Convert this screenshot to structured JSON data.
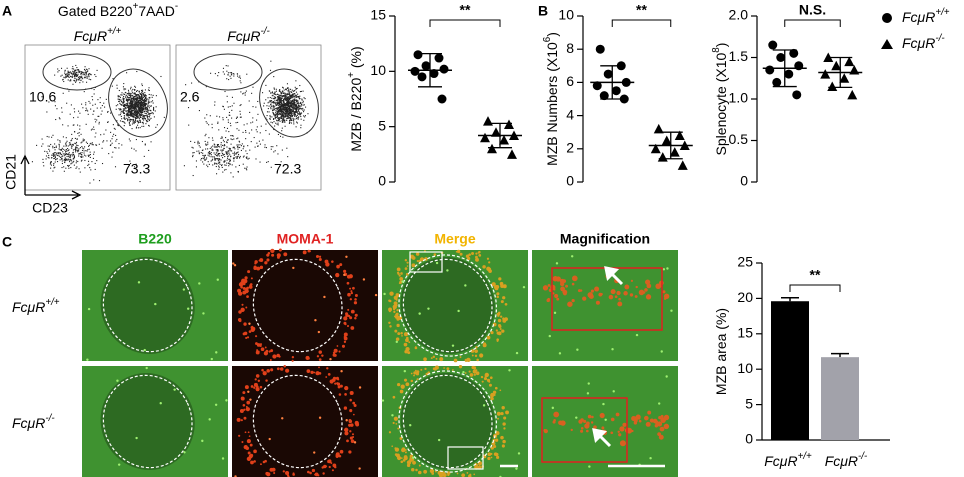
{
  "panel_labels": [
    "A",
    "B",
    "C"
  ],
  "flow": {
    "title": [
      {
        "text": "Gated B220"
      },
      {
        "text": "+",
        "sup": true
      },
      {
        "text": "7AAD"
      },
      {
        "text": "-",
        "sup": true
      }
    ],
    "plots": [
      {
        "label": [
          {
            "text": "FcμR"
          },
          {
            "text": "+/+",
            "sup": true
          }
        ],
        "gates": [
          10.6,
          73.3
        ]
      },
      {
        "label": [
          {
            "text": "FcμR"
          },
          {
            "text": "-/-",
            "sup": true
          }
        ],
        "gates": [
          2.6,
          72.3
        ]
      }
    ],
    "xlabel": "CD23",
    "ylabel": "CD21"
  },
  "legend": [
    {
      "marker": "circle",
      "label": [
        {
          "text": "FcμR"
        },
        {
          "text": "+/+",
          "sup": true
        }
      ]
    },
    {
      "marker": "triangle",
      "label": [
        {
          "text": "FcμR"
        },
        {
          "text": "-/-",
          "sup": true
        }
      ]
    }
  ],
  "chart_data": [
    {
      "type": "dot",
      "ylabel": [
        {
          "text": "MZB / B220"
        },
        {
          "text": "+",
          "sup": true
        },
        {
          "text": " (%)"
        }
      ],
      "ylim": [
        0,
        15
      ],
      "yticks": [
        0,
        5,
        10,
        15
      ],
      "annotation": "**",
      "groups": [
        {
          "marker": "circle",
          "values": [
            11.5,
            11.2,
            10.5,
            10.2,
            10.0,
            9.8,
            9.5,
            7.5
          ],
          "mean": 10.1,
          "sd": 1.5
        },
        {
          "marker": "triangle",
          "values": [
            5.5,
            5.2,
            4.5,
            4.2,
            4.0,
            3.8,
            3.0,
            2.5
          ],
          "mean": 4.2,
          "sd": 1.1
        }
      ]
    },
    {
      "type": "dot",
      "ylabel": [
        {
          "text": "MZB Numbers (X10"
        },
        {
          "text": "6",
          "sup": true
        },
        {
          "text": ")"
        }
      ],
      "ylim": [
        0,
        10
      ],
      "yticks": [
        0,
        2,
        4,
        6,
        8,
        10
      ],
      "annotation": "**",
      "groups": [
        {
          "marker": "circle",
          "values": [
            8.0,
            7.0,
            6.5,
            6.0,
            5.8,
            5.5,
            5.2,
            5.0
          ],
          "mean": 6.0,
          "sd": 1.0
        },
        {
          "marker": "triangle",
          "values": [
            3.2,
            2.8,
            2.5,
            2.2,
            2.0,
            1.8,
            1.5,
            1.0
          ],
          "mean": 2.2,
          "sd": 0.8
        }
      ]
    },
    {
      "type": "dot",
      "ylabel": [
        {
          "text": "Splenocyte (X10"
        },
        {
          "text": "8",
          "sup": true
        },
        {
          "text": ")"
        }
      ],
      "ylim": [
        0,
        2
      ],
      "yticks": [
        0,
        0.5,
        {
          "value": 1,
          "label": "1.0"
        },
        1.5,
        {
          "value": 2,
          "label": "2.0"
        }
      ],
      "annotation": "N.S.",
      "groups": [
        {
          "marker": "circle",
          "values": [
            1.65,
            1.55,
            1.5,
            1.4,
            1.35,
            1.3,
            1.2,
            1.05
          ],
          "mean": 1.37,
          "sd": 0.22
        },
        {
          "marker": "triangle",
          "values": [
            1.5,
            1.45,
            1.4,
            1.35,
            1.3,
            1.25,
            1.15,
            1.05
          ],
          "mean": 1.32,
          "sd": 0.18
        }
      ]
    },
    {
      "type": "bar",
      "ylabel": [
        {
          "text": "MZB area (%)"
        }
      ],
      "ylim": [
        0,
        25
      ],
      "yticks": [
        0,
        5,
        10,
        15,
        20,
        25
      ],
      "annotation": "**",
      "categories": [
        [
          {
            "text": "FcμR"
          },
          {
            "text": "+/+",
            "sup": true
          }
        ],
        [
          {
            "text": "FcμR"
          },
          {
            "text": "-/-",
            "sup": true
          }
        ]
      ],
      "values": [
        19.6,
        11.7
      ],
      "errors": [
        0.5,
        0.5
      ],
      "colors": [
        "#000000",
        "#a2a2aa"
      ]
    }
  ],
  "images": {
    "columns": [
      {
        "text": "B220",
        "color": "#1e9e1e"
      },
      {
        "text": "MOMA-1",
        "color": "#e02222"
      },
      {
        "text": "Merge",
        "color": "#f2b400"
      },
      {
        "text": "Magnification",
        "color": "#000000"
      }
    ],
    "rows": [
      [
        {
          "text": "FcμR"
        },
        {
          "text": "+/+",
          "sup": true
        }
      ],
      [
        {
          "text": "FcμR"
        },
        {
          "text": "-/-",
          "sup": true
        }
      ]
    ]
  }
}
